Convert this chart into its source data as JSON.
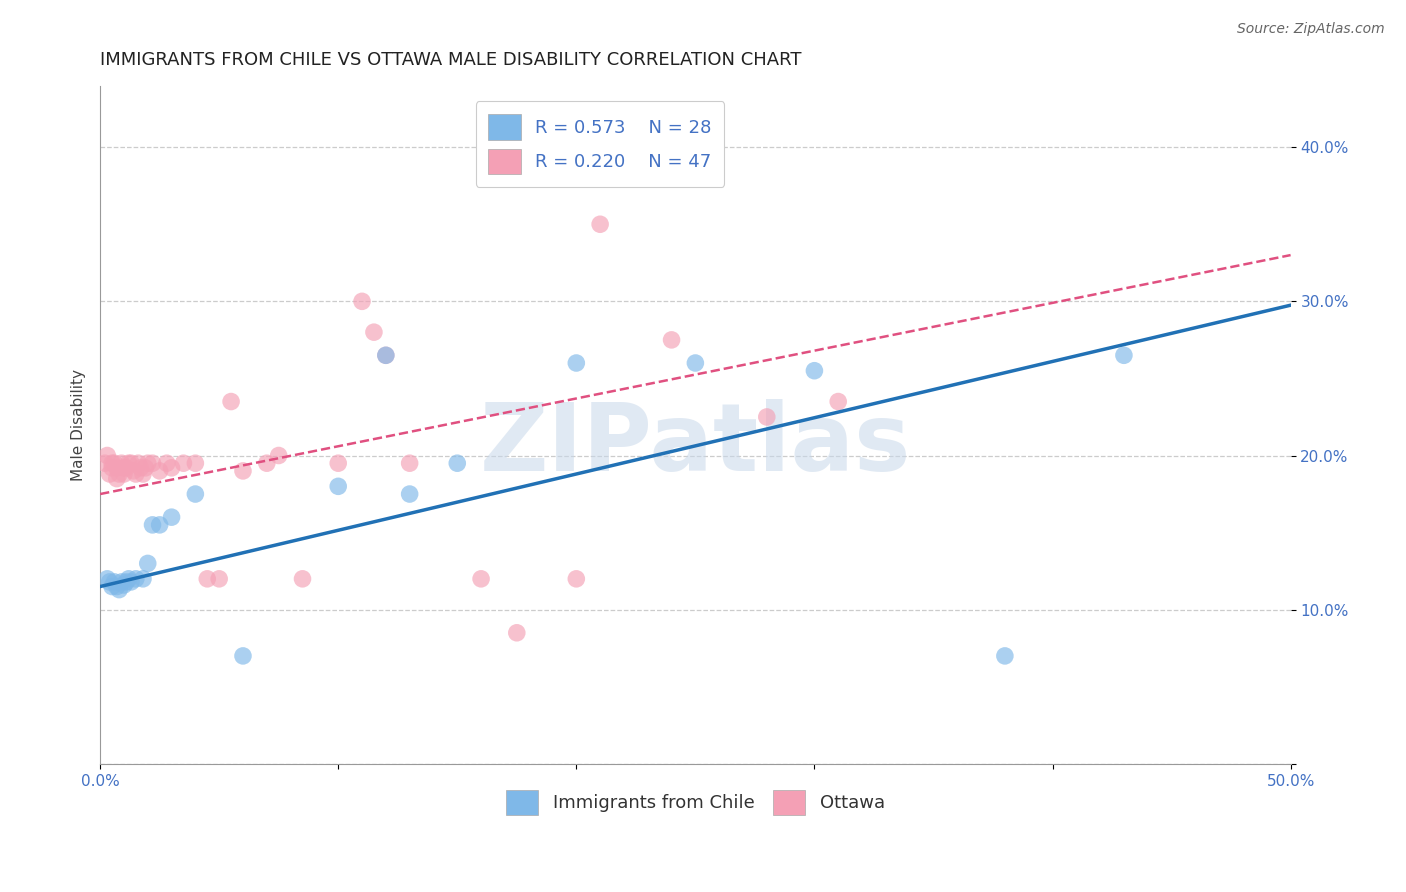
{
  "title": "IMMIGRANTS FROM CHILE VS OTTAWA MALE DISABILITY CORRELATION CHART",
  "source": "Source: ZipAtlas.com",
  "ylabel": "Male Disability",
  "xlim": [
    0.0,
    0.5
  ],
  "ylim": [
    0.0,
    0.44
  ],
  "grid_color": "#cccccc",
  "background_color": "#ffffff",
  "watermark": "ZIPatlas",
  "legend_R1": "R = 0.573",
  "legend_N1": "N = 28",
  "legend_R2": "R = 0.220",
  "legend_N2": "N = 47",
  "color_blue": "#7fb8e8",
  "color_pink": "#f4a0b5",
  "line_color_blue": "#2171b5",
  "line_color_pink": "#e05080",
  "title_fontsize": 13,
  "axis_label_fontsize": 11,
  "tick_fontsize": 11,
  "blue_intercept": 0.115,
  "blue_slope": 0.365,
  "pink_intercept": 0.175,
  "pink_slope": 0.31,
  "blue_x": [
    0.003,
    0.004,
    0.005,
    0.006,
    0.007,
    0.008,
    0.009,
    0.01,
    0.011,
    0.012,
    0.013,
    0.015,
    0.018,
    0.02,
    0.022,
    0.025,
    0.03,
    0.04,
    0.06,
    0.1,
    0.12,
    0.13,
    0.15,
    0.2,
    0.25,
    0.3,
    0.38,
    0.43
  ],
  "blue_y": [
    0.12,
    0.118,
    0.115,
    0.118,
    0.115,
    0.113,
    0.118,
    0.116,
    0.118,
    0.12,
    0.118,
    0.12,
    0.12,
    0.13,
    0.155,
    0.155,
    0.16,
    0.175,
    0.07,
    0.18,
    0.265,
    0.175,
    0.195,
    0.26,
    0.26,
    0.255,
    0.07,
    0.265
  ],
  "pink_x": [
    0.002,
    0.003,
    0.004,
    0.005,
    0.005,
    0.006,
    0.007,
    0.007,
    0.008,
    0.009,
    0.01,
    0.01,
    0.011,
    0.012,
    0.013,
    0.014,
    0.015,
    0.016,
    0.017,
    0.018,
    0.019,
    0.02,
    0.022,
    0.025,
    0.028,
    0.03,
    0.035,
    0.04,
    0.045,
    0.05,
    0.055,
    0.06,
    0.07,
    0.075,
    0.085,
    0.1,
    0.11,
    0.115,
    0.12,
    0.13,
    0.16,
    0.175,
    0.2,
    0.21,
    0.24,
    0.28,
    0.31
  ],
  "pink_y": [
    0.195,
    0.2,
    0.188,
    0.192,
    0.195,
    0.195,
    0.192,
    0.185,
    0.188,
    0.195,
    0.188,
    0.192,
    0.192,
    0.195,
    0.195,
    0.19,
    0.188,
    0.195,
    0.192,
    0.188,
    0.192,
    0.195,
    0.195,
    0.19,
    0.195,
    0.192,
    0.195,
    0.195,
    0.12,
    0.12,
    0.235,
    0.19,
    0.195,
    0.2,
    0.12,
    0.195,
    0.3,
    0.28,
    0.265,
    0.195,
    0.12,
    0.085,
    0.12,
    0.35,
    0.275,
    0.225,
    0.235
  ]
}
